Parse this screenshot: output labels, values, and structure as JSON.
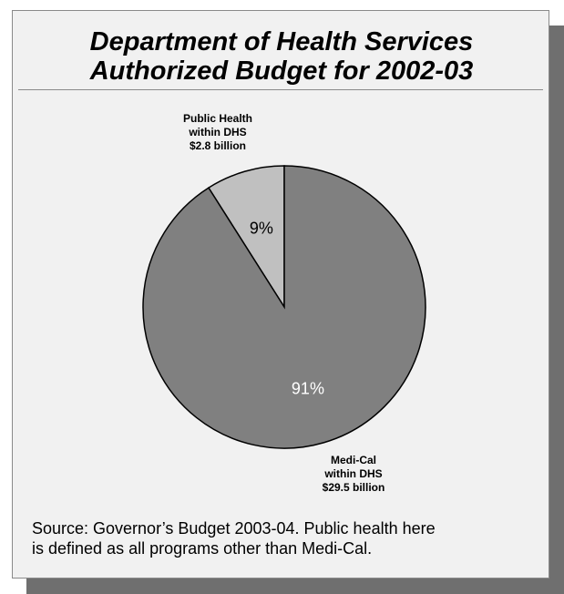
{
  "title": {
    "line1": "Department of Health Services",
    "line2": "Authorized Budget for 2002-03"
  },
  "chart_data": {
    "type": "pie",
    "title": "Department of Health Services Authorized Budget for 2002-03",
    "slices": [
      {
        "name": "Public Health within DHS",
        "label_lines": [
          "Public Health",
          "within DHS",
          "$2.8 billion"
        ],
        "amount_billion": 2.8,
        "percent": 9,
        "percent_label": "9%",
        "color": "#c0c0c0"
      },
      {
        "name": "Medi-Cal within DHS",
        "label_lines": [
          "Medi-Cal",
          "within DHS",
          "$29.5 billion"
        ],
        "amount_billion": 29.5,
        "percent": 91,
        "percent_label": "91%",
        "color": "#808080"
      }
    ],
    "start_angle": "12 o'clock",
    "direction": "counterclockwise for first slice"
  },
  "source": {
    "line1": "Source: Governor’s Budget 2003-04.  Public health here",
    "line2": "is defined as all programs other than Medi-Cal."
  },
  "colors": {
    "panel_background": "#f1f1f1",
    "shadow": "#6f6f6f",
    "outline": "#000000"
  }
}
